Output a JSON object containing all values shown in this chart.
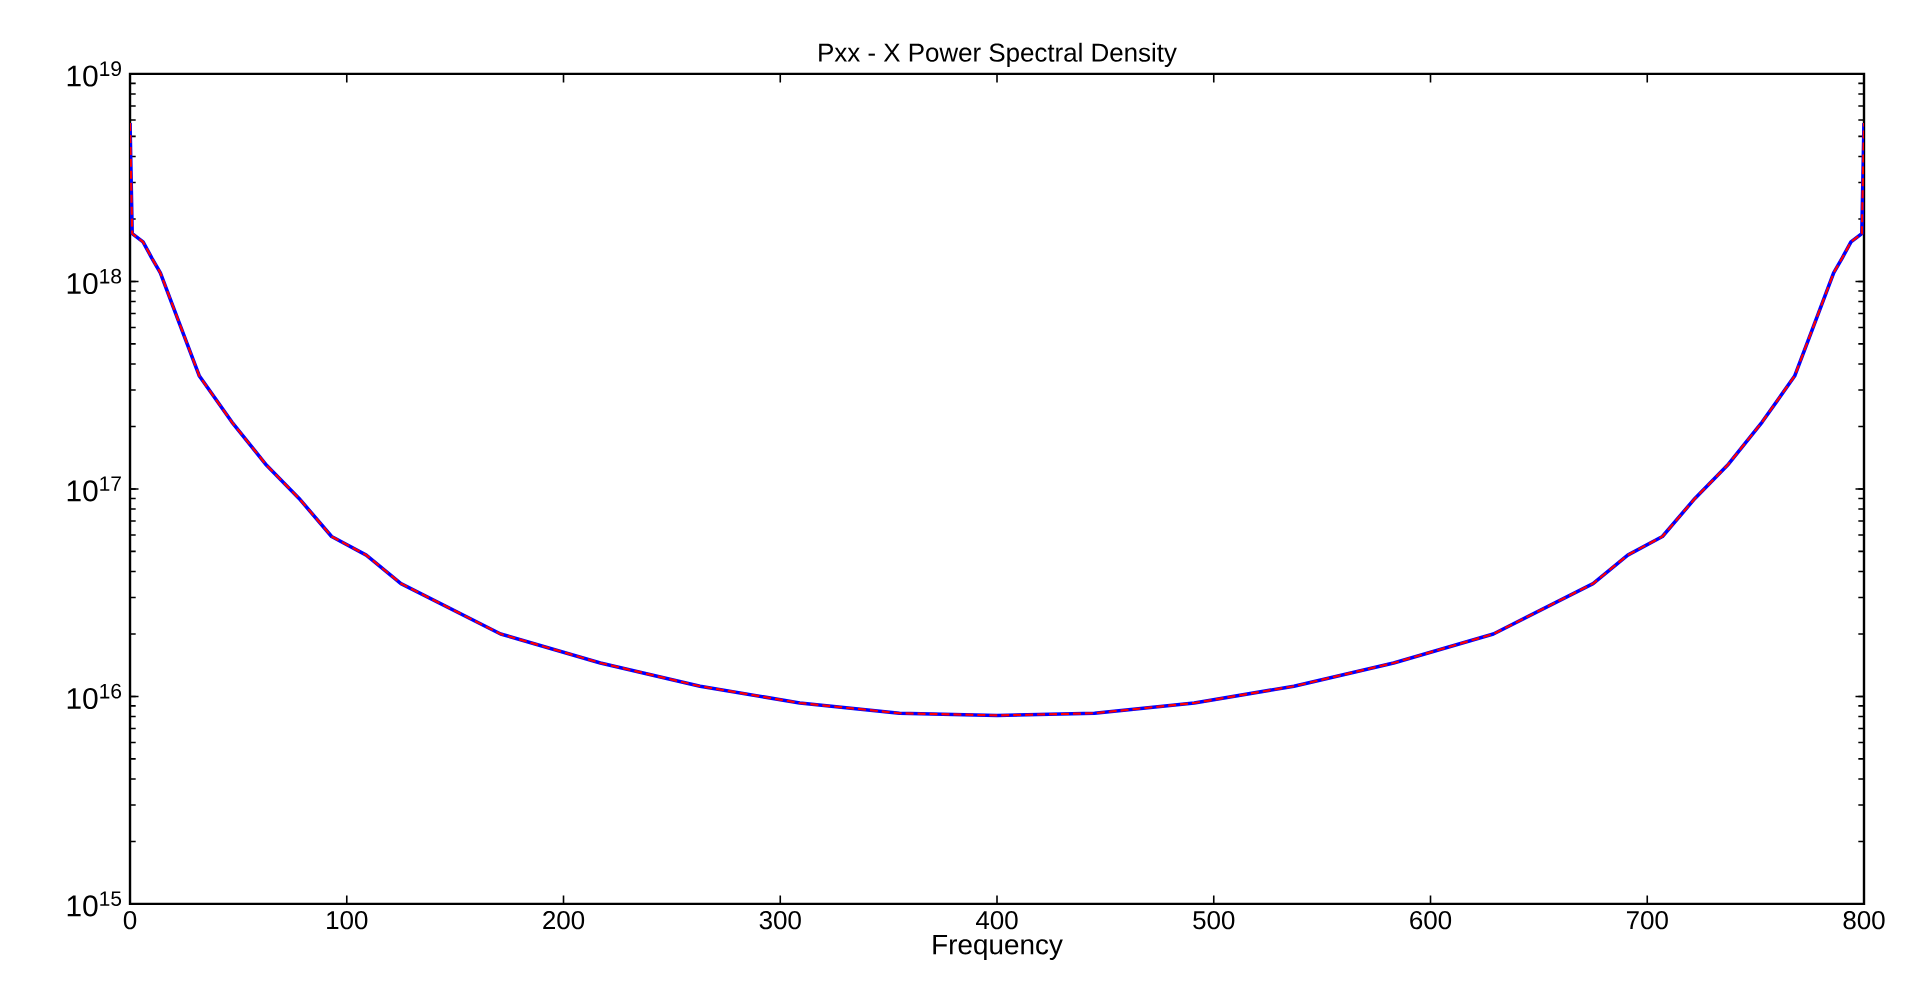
{
  "chart_data": {
    "type": "line",
    "title": "Pxx - X Power Spectral Density",
    "xlabel": "Frequency",
    "log": "y",
    "x": [
      0,
      1,
      6,
      10,
      14,
      23,
      32,
      47,
      63,
      78,
      93,
      109,
      125,
      171,
      217,
      263,
      309,
      355,
      400,
      445,
      491,
      537,
      583,
      629,
      675,
      691,
      707,
      722,
      737,
      753,
      768,
      777,
      786,
      790,
      794,
      799,
      800
    ],
    "series": [
      {
        "color": "#0000ff",
        "line_style": "solid",
        "values": [
          5.8e+18,
          1.7e+18,
          1.55e+18,
          1.3e+18,
          1.1e+18,
          6.2e+17,
          3.5e+17,
          2.1e+17,
          1.3e+17,
          9e+16,
          5.9e+16,
          4.8e+16,
          3.5e+16,
          2e+16,
          1.45e+16,
          1.12e+16,
          9300000000000000.0,
          8300000000000000.0,
          8100000000000000.0,
          8300000000000000.0,
          9300000000000000.0,
          1.12e+16,
          1.45e+16,
          2e+16,
          3.5e+16,
          4.8e+16,
          5.9e+16,
          9e+16,
          1.3e+17,
          2.1e+17,
          3.5e+17,
          6.2e+17,
          1.1e+18,
          1.3e+18,
          1.55e+18,
          1.7e+18,
          5.8e+18
        ]
      },
      {
        "color": "#ff0000",
        "line_style": "dashed",
        "values": [
          5.8e+18,
          1.7e+18,
          1.55e+18,
          1.3e+18,
          1.1e+18,
          6.2e+17,
          3.5e+17,
          2.1e+17,
          1.3e+17,
          9e+16,
          5.9e+16,
          4.8e+16,
          3.5e+16,
          2e+16,
          1.45e+16,
          1.12e+16,
          9300000000000000.0,
          8300000000000000.0,
          8100000000000000.0,
          8300000000000000.0,
          9300000000000000.0,
          1.12e+16,
          1.45e+16,
          2e+16,
          3.5e+16,
          4.8e+16,
          5.9e+16,
          9e+16,
          1.3e+17,
          2.1e+17,
          3.5e+17,
          6.2e+17,
          1.1e+18,
          1.3e+18,
          1.55e+18,
          1.7e+18,
          5.8e+18
        ]
      }
    ],
    "xlim": [
      0,
      800
    ],
    "xticks": [
      0,
      100,
      200,
      300,
      400,
      500,
      600,
      700,
      800
    ],
    "ylim": [
      1000000000000000.0,
      1e+19
    ],
    "yticks": [
      {
        "value": 1000000000000000.0,
        "label": "10$^{15}$"
      },
      {
        "value": 1e+16,
        "label": "10$^{16}$"
      },
      {
        "value": 1e+17,
        "label": "10$^{17}$"
      },
      {
        "value": 1e+18,
        "label": "10$^{18}$"
      },
      {
        "value": 1e+19,
        "label": "10$^{19}$"
      }
    ],
    "marker": "none"
  }
}
